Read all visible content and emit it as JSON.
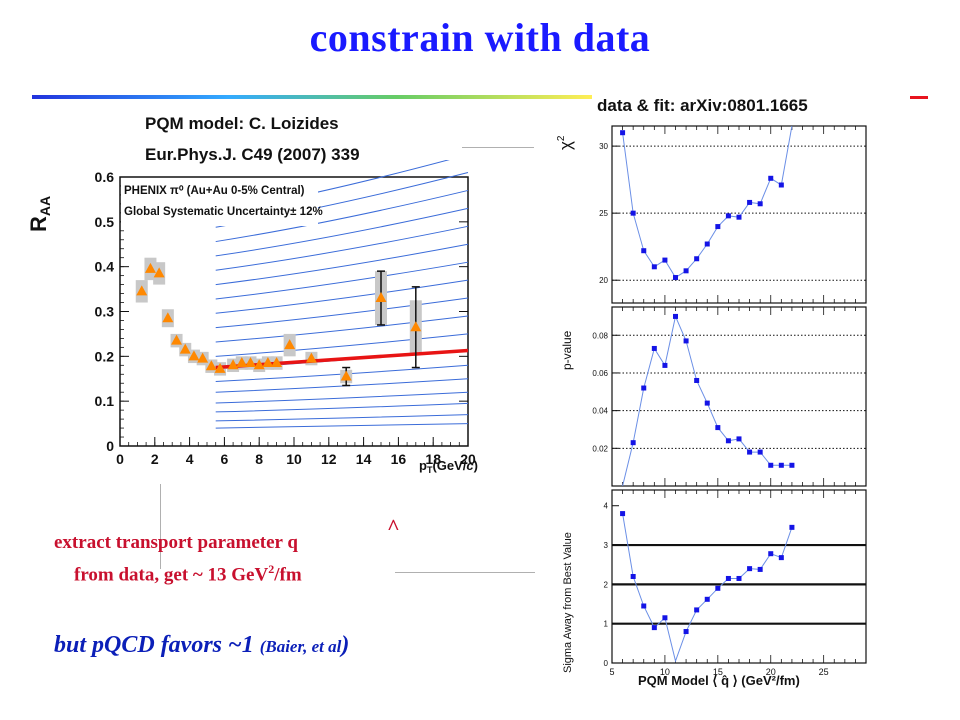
{
  "slide": {
    "title": "constrain with data",
    "ref_fit": "data & fit: arXiv:0801.1665",
    "ref_model_line1": "PQM model: C. Loizides",
    "ref_model_line2": "Eur.Phys.J. C49 (2007) 339",
    "extract_line1": "extract transport parameter q",
    "extract_hat": "^",
    "extract_line2_pre": "from data, get ~ 13 GeV",
    "extract_line2_sup": "2",
    "extract_line2_post": "/fm",
    "pqcd_main": "but pQCD favors ~1 ",
    "pqcd_ref": "(Baier, et al",
    "pqcd_close": ")",
    "colors": {
      "title": "#1a1aff",
      "accent_red": "#c8102e",
      "pqcd_blue": "#0b1fb8"
    }
  },
  "chart_data": [
    {
      "type": "scatter",
      "ylabel": "R_AA",
      "ylabel_main": "R",
      "ylabel_sub": "AA",
      "xlabel": "p_T(GeV/c)",
      "xlabel_p": "p",
      "xlabel_sub": "T",
      "xlabel_unit": "(GeV/",
      "xlabel_c": "c",
      "xlabel_close": ")",
      "legend_line1": "PHENIX π⁰ (Au+Au 0-5% Central)",
      "legend_line2": "Global Systematic Uncertainty± 12%",
      "xlim": [
        0,
        20
      ],
      "ylim": [
        0,
        0.6
      ],
      "xticks": [
        "0",
        "2",
        "4",
        "6",
        "8",
        "10",
        "12",
        "14",
        "16",
        "18",
        "20"
      ],
      "yticks": [
        "0",
        "0.1",
        "0.2",
        "0.3",
        "0.4",
        "0.5",
        "0.6"
      ],
      "points": [
        {
          "x": 1.25,
          "y": 0.345,
          "sys": 0.025,
          "stat": 0
        },
        {
          "x": 1.75,
          "y": 0.395,
          "sys": 0.025,
          "stat": 0
        },
        {
          "x": 2.25,
          "y": 0.385,
          "sys": 0.025,
          "stat": 0
        },
        {
          "x": 2.75,
          "y": 0.285,
          "sys": 0.02,
          "stat": 0
        },
        {
          "x": 3.25,
          "y": 0.235,
          "sys": 0.015,
          "stat": 0
        },
        {
          "x": 3.75,
          "y": 0.215,
          "sys": 0.015,
          "stat": 0
        },
        {
          "x": 4.25,
          "y": 0.2,
          "sys": 0.015,
          "stat": 0
        },
        {
          "x": 4.75,
          "y": 0.195,
          "sys": 0.015,
          "stat": 0
        },
        {
          "x": 5.25,
          "y": 0.178,
          "sys": 0.015,
          "stat": 0
        },
        {
          "x": 5.75,
          "y": 0.172,
          "sys": 0.015,
          "stat": 0
        },
        {
          "x": 6.5,
          "y": 0.18,
          "sys": 0.015,
          "stat": 0
        },
        {
          "x": 7.0,
          "y": 0.185,
          "sys": 0.015,
          "stat": 0
        },
        {
          "x": 7.5,
          "y": 0.185,
          "sys": 0.015,
          "stat": 0
        },
        {
          "x": 8.0,
          "y": 0.18,
          "sys": 0.015,
          "stat": 0
        },
        {
          "x": 8.5,
          "y": 0.185,
          "sys": 0.015,
          "stat": 0
        },
        {
          "x": 9.0,
          "y": 0.185,
          "sys": 0.015,
          "stat": 0
        },
        {
          "x": 9.75,
          "y": 0.225,
          "sys": 0.025,
          "stat": 0
        },
        {
          "x": 11.0,
          "y": 0.195,
          "sys": 0.015,
          "stat": 0
        },
        {
          "x": 13.0,
          "y": 0.155,
          "sys": 0.015,
          "stat": 0.02
        },
        {
          "x": 15.0,
          "y": 0.33,
          "sys": 0.06,
          "stat": 0.06
        },
        {
          "x": 17.0,
          "y": 0.265,
          "sys": 0.06,
          "stat": 0.09
        }
      ],
      "fit_line": {
        "x": [
          5.5,
          20
        ],
        "y": [
          0.175,
          0.213
        ]
      },
      "model_curves_y_at_x20": [
        0.05,
        0.07,
        0.095,
        0.12,
        0.15,
        0.18,
        0.215,
        0.25,
        0.29,
        0.33,
        0.37,
        0.41,
        0.45,
        0.49,
        0.53,
        0.57,
        0.61,
        0.65
      ],
      "colors": {
        "points": "#ff8800",
        "sys_box": "#c8c8c8",
        "fit": "#e81414",
        "model": "#3b6cd9"
      }
    },
    {
      "type": "line",
      "ylabel": "χ²",
      "ylabel_main": "χ",
      "ylabel_sup": "2",
      "ylim": [
        18.3,
        31.5
      ],
      "yticks": [
        "20",
        "25",
        "30"
      ],
      "xlim": [
        5,
        29
      ],
      "x": [
        5,
        6,
        7,
        8,
        9,
        10,
        11,
        12,
        13,
        14,
        15,
        16,
        17,
        18,
        19,
        20,
        21,
        22,
        23,
        24,
        25,
        26,
        27,
        28,
        29
      ],
      "y": [
        null,
        31.0,
        25.0,
        22.2,
        21.0,
        21.5,
        20.2,
        20.7,
        21.6,
        22.7,
        24.0,
        24.8,
        24.7,
        25.8,
        25.7,
        27.6,
        27.1,
        31.5,
        null,
        null,
        null,
        null,
        null,
        null,
        null
      ],
      "colors": {
        "line": "#6b8fe6",
        "marker": "#1414e6"
      }
    },
    {
      "type": "line",
      "ylabel": "p-value",
      "ylim": [
        0,
        0.095
      ],
      "yticks": [
        "0.02",
        "0.04",
        "0.06",
        "0.08"
      ],
      "xlim": [
        5,
        29
      ],
      "x": [
        6,
        7,
        8,
        9,
        10,
        11,
        12,
        13,
        14,
        15,
        16,
        17,
        18,
        19,
        20,
        21,
        22,
        23,
        24,
        25,
        26
      ],
      "y": [
        0.0,
        0.023,
        0.052,
        0.073,
        0.064,
        0.09,
        0.077,
        0.056,
        0.044,
        0.031,
        0.024,
        0.025,
        0.018,
        0.018,
        0.011,
        0.011,
        0.011,
        null,
        null,
        null,
        null
      ],
      "colors": {
        "line": "#6b8fe6",
        "marker": "#1414e6"
      }
    },
    {
      "type": "line",
      "ylabel": "Sigma Away from Best Value",
      "xlabel": "PQM Model ⟨ q̂ ⟩ (GeV²/fm)",
      "ylim": [
        0,
        4.4
      ],
      "yticks": [
        "0",
        "1",
        "2",
        "3",
        "4"
      ],
      "xticks": [
        "5",
        "10",
        "15",
        "20",
        "25"
      ],
      "reference_lines": [
        1,
        2,
        3
      ],
      "xlim": [
        5,
        29
      ],
      "x": [
        6,
        7,
        8,
        9,
        10,
        11,
        12,
        13,
        14,
        15,
        16,
        17,
        18,
        19,
        20,
        21,
        22,
        23,
        24,
        25,
        26,
        27
      ],
      "y": [
        3.8,
        2.2,
        1.45,
        0.9,
        1.15,
        0.05,
        0.8,
        1.35,
        1.62,
        1.9,
        2.15,
        2.15,
        2.4,
        2.38,
        2.78,
        2.68,
        3.45,
        null,
        null,
        null,
        null,
        null
      ],
      "colors": {
        "line": "#6b8fe6",
        "marker": "#1414e6"
      }
    }
  ]
}
